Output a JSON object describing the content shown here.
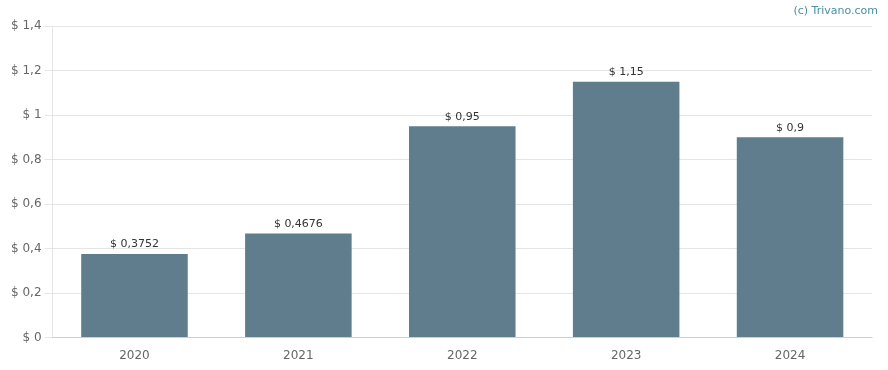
{
  "chart_data": {
    "type": "bar",
    "categories": [
      "2020",
      "2021",
      "2022",
      "2023",
      "2024"
    ],
    "values": [
      0.3752,
      0.4676,
      0.95,
      1.15,
      0.9
    ],
    "value_labels": [
      "$ 0,3752",
      "$ 0,4676",
      "$ 0,95",
      "$ 1,15",
      "$ 0,9"
    ],
    "data_labels": true,
    "color": "#5f7d8c",
    "ylim": [
      0,
      1.4
    ],
    "yticks": [
      {
        "value": 0,
        "label": "$ 0"
      },
      {
        "value": 0.2,
        "label": "$ 0,2"
      },
      {
        "value": 0.4,
        "label": "$ 0,4"
      },
      {
        "value": 0.6,
        "label": "$ 0,6"
      },
      {
        "value": 0.8,
        "label": "$ 0,8"
      },
      {
        "value": 1.0,
        "label": "$ 1"
      },
      {
        "value": 1.2,
        "label": "$ 1,2"
      },
      {
        "value": 1.4,
        "label": "$ 1,4"
      }
    ],
    "grid": true,
    "annotations": [
      "(c) Trivano.com"
    ]
  }
}
